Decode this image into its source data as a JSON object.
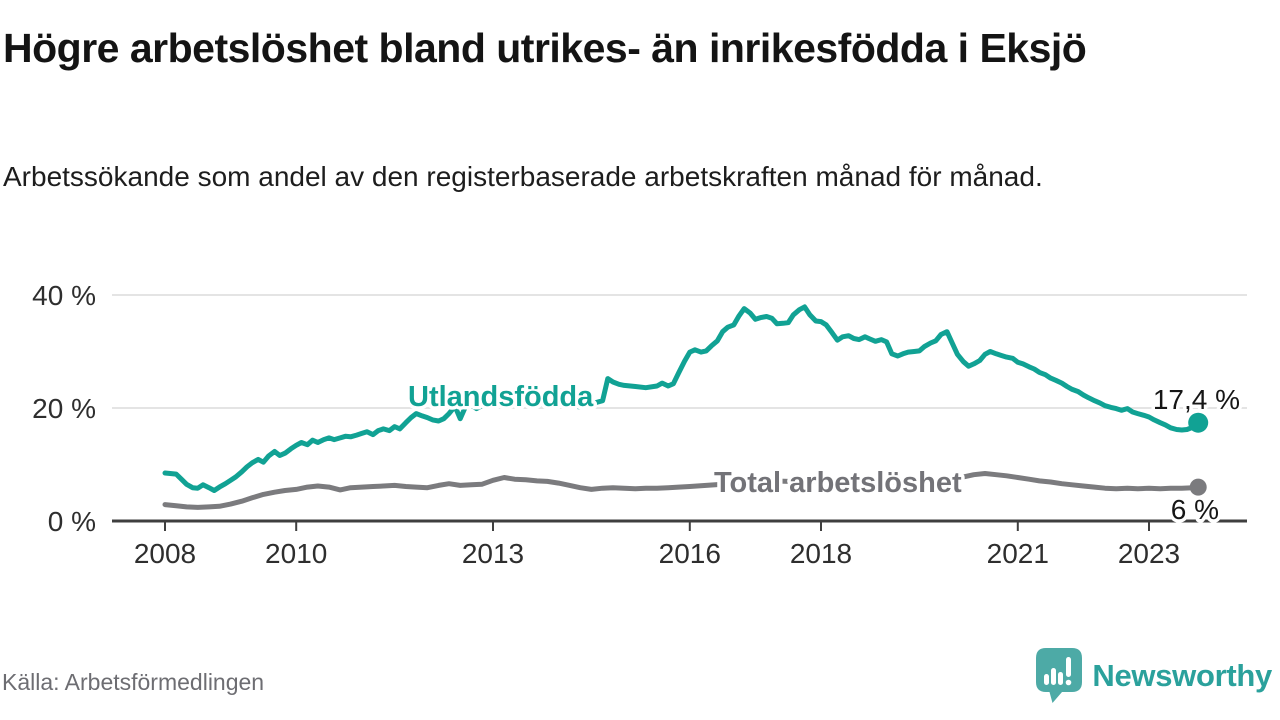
{
  "header": {
    "title": "Högre arbetslöshet bland utrikes- än inrikesfödda i Eksjö",
    "subtitle": "Arbetssökande som andel av den registerbaserade arbetskraften månad för månad."
  },
  "chart_data": {
    "type": "line",
    "title": "Högre arbetslöshet bland utrikes- än inrikesfödda i Eksjö",
    "subtitle": "Arbetssökande som andel av den registerbaserade arbetskraften månad för månad.",
    "xlabel": "",
    "ylabel": "",
    "x_unit": "year (monthly data)",
    "y_unit": "%",
    "x_ticks": [
      2008,
      2010,
      2013,
      2016,
      2018,
      2021,
      2023
    ],
    "y_ticks": [
      {
        "value": 0,
        "label": "0 %"
      },
      {
        "value": 20,
        "label": "20 %"
      },
      {
        "value": 40,
        "label": "40 %"
      }
    ],
    "ylim": [
      0,
      40
    ],
    "grid": "horizontal",
    "legend": "inline-labels",
    "series": [
      {
        "name": "Utlandsfödda",
        "color": "#11A294",
        "end_value": 17.4,
        "end_label": "17,4 %",
        "points": [
          [
            2008.0,
            8.5
          ],
          [
            2008.08,
            8.4
          ],
          [
            2008.17,
            8.3
          ],
          [
            2008.25,
            7.4
          ],
          [
            2008.33,
            6.5
          ],
          [
            2008.42,
            5.9
          ],
          [
            2008.5,
            5.8
          ],
          [
            2008.58,
            6.4
          ],
          [
            2008.67,
            5.9
          ],
          [
            2008.75,
            5.4
          ],
          [
            2008.83,
            6.0
          ],
          [
            2008.92,
            6.6
          ],
          [
            2009.0,
            7.2
          ],
          [
            2009.08,
            7.8
          ],
          [
            2009.17,
            8.7
          ],
          [
            2009.25,
            9.6
          ],
          [
            2009.33,
            10.3
          ],
          [
            2009.42,
            10.9
          ],
          [
            2009.5,
            10.4
          ],
          [
            2009.58,
            11.5
          ],
          [
            2009.67,
            12.3
          ],
          [
            2009.75,
            11.6
          ],
          [
            2009.83,
            12.0
          ],
          [
            2009.92,
            12.8
          ],
          [
            2010.0,
            13.4
          ],
          [
            2010.08,
            13.9
          ],
          [
            2010.17,
            13.5
          ],
          [
            2010.25,
            14.3
          ],
          [
            2010.33,
            13.9
          ],
          [
            2010.42,
            14.4
          ],
          [
            2010.5,
            14.7
          ],
          [
            2010.58,
            14.4
          ],
          [
            2010.67,
            14.7
          ],
          [
            2010.75,
            15.0
          ],
          [
            2010.83,
            14.9
          ],
          [
            2010.92,
            15.2
          ],
          [
            2011.0,
            15.5
          ],
          [
            2011.08,
            15.8
          ],
          [
            2011.17,
            15.3
          ],
          [
            2011.25,
            16.0
          ],
          [
            2011.33,
            16.3
          ],
          [
            2011.42,
            16.0
          ],
          [
            2011.5,
            16.7
          ],
          [
            2011.58,
            16.3
          ],
          [
            2011.67,
            17.4
          ],
          [
            2011.75,
            18.3
          ],
          [
            2011.83,
            19.0
          ],
          [
            2011.92,
            18.6
          ],
          [
            2012.0,
            18.3
          ],
          [
            2012.08,
            17.9
          ],
          [
            2012.17,
            17.7
          ],
          [
            2012.25,
            18.1
          ],
          [
            2012.33,
            19.0
          ],
          [
            2012.42,
            20.3
          ],
          [
            2012.5,
            18.1
          ],
          [
            2012.58,
            20.2
          ],
          [
            2012.67,
            20.5
          ],
          [
            2012.75,
            19.9
          ],
          [
            2012.83,
            20.4
          ],
          [
            2012.92,
            20.6
          ],
          [
            2013.0,
            20.7
          ],
          [
            2013.17,
            20.9
          ],
          [
            2013.33,
            20.5
          ],
          [
            2013.5,
            20.8
          ],
          [
            2013.67,
            20.6
          ],
          [
            2013.83,
            20.9
          ],
          [
            2014.0,
            20.7
          ],
          [
            2014.17,
            20.4
          ],
          [
            2014.33,
            20.2
          ],
          [
            2014.5,
            20.7
          ],
          [
            2014.58,
            21.0
          ],
          [
            2014.67,
            21.3
          ],
          [
            2014.75,
            25.2
          ],
          [
            2014.83,
            24.6
          ],
          [
            2014.92,
            24.2
          ],
          [
            2015.0,
            24.0
          ],
          [
            2015.17,
            23.8
          ],
          [
            2015.33,
            23.6
          ],
          [
            2015.5,
            23.9
          ],
          [
            2015.58,
            24.4
          ],
          [
            2015.67,
            23.9
          ],
          [
            2015.75,
            24.3
          ],
          [
            2015.83,
            26.2
          ],
          [
            2015.92,
            28.3
          ],
          [
            2016.0,
            29.9
          ],
          [
            2016.08,
            30.3
          ],
          [
            2016.17,
            29.9
          ],
          [
            2016.25,
            30.1
          ],
          [
            2016.33,
            31.0
          ],
          [
            2016.42,
            31.9
          ],
          [
            2016.5,
            33.5
          ],
          [
            2016.58,
            34.3
          ],
          [
            2016.67,
            34.7
          ],
          [
            2016.75,
            36.3
          ],
          [
            2016.83,
            37.6
          ],
          [
            2016.92,
            36.8
          ],
          [
            2017.0,
            35.7
          ],
          [
            2017.08,
            36.0
          ],
          [
            2017.17,
            36.2
          ],
          [
            2017.25,
            35.9
          ],
          [
            2017.33,
            34.9
          ],
          [
            2017.42,
            35.0
          ],
          [
            2017.5,
            35.1
          ],
          [
            2017.58,
            36.5
          ],
          [
            2017.67,
            37.4
          ],
          [
            2017.75,
            37.9
          ],
          [
            2017.83,
            36.5
          ],
          [
            2017.92,
            35.4
          ],
          [
            2018.0,
            35.3
          ],
          [
            2018.08,
            34.7
          ],
          [
            2018.17,
            33.3
          ],
          [
            2018.25,
            32.0
          ],
          [
            2018.33,
            32.6
          ],
          [
            2018.42,
            32.8
          ],
          [
            2018.5,
            32.3
          ],
          [
            2018.58,
            32.1
          ],
          [
            2018.67,
            32.6
          ],
          [
            2018.75,
            32.2
          ],
          [
            2018.83,
            31.8
          ],
          [
            2018.92,
            32.1
          ],
          [
            2019.0,
            31.7
          ],
          [
            2019.08,
            29.6
          ],
          [
            2019.17,
            29.2
          ],
          [
            2019.25,
            29.6
          ],
          [
            2019.33,
            29.9
          ],
          [
            2019.42,
            30.0
          ],
          [
            2019.5,
            30.1
          ],
          [
            2019.58,
            30.9
          ],
          [
            2019.67,
            31.5
          ],
          [
            2019.75,
            31.9
          ],
          [
            2019.83,
            33.0
          ],
          [
            2019.92,
            33.5
          ],
          [
            2020.0,
            31.5
          ],
          [
            2020.08,
            29.5
          ],
          [
            2020.17,
            28.2
          ],
          [
            2020.25,
            27.4
          ],
          [
            2020.33,
            27.8
          ],
          [
            2020.42,
            28.4
          ],
          [
            2020.5,
            29.5
          ],
          [
            2020.58,
            30.0
          ],
          [
            2020.67,
            29.6
          ],
          [
            2020.75,
            29.3
          ],
          [
            2020.83,
            29.0
          ],
          [
            2020.92,
            28.8
          ],
          [
            2021.0,
            28.1
          ],
          [
            2021.08,
            27.8
          ],
          [
            2021.17,
            27.3
          ],
          [
            2021.25,
            26.9
          ],
          [
            2021.33,
            26.3
          ],
          [
            2021.42,
            25.9
          ],
          [
            2021.5,
            25.3
          ],
          [
            2021.58,
            24.9
          ],
          [
            2021.67,
            24.4
          ],
          [
            2021.75,
            23.8
          ],
          [
            2021.83,
            23.3
          ],
          [
            2021.92,
            22.9
          ],
          [
            2022.0,
            22.3
          ],
          [
            2022.08,
            21.8
          ],
          [
            2022.17,
            21.3
          ],
          [
            2022.25,
            20.9
          ],
          [
            2022.33,
            20.4
          ],
          [
            2022.42,
            20.1
          ],
          [
            2022.5,
            19.9
          ],
          [
            2022.58,
            19.6
          ],
          [
            2022.67,
            19.9
          ],
          [
            2022.75,
            19.3
          ],
          [
            2022.83,
            19.0
          ],
          [
            2022.92,
            18.7
          ],
          [
            2023.0,
            18.4
          ],
          [
            2023.08,
            17.9
          ],
          [
            2023.17,
            17.4
          ],
          [
            2023.25,
            17.0
          ],
          [
            2023.33,
            16.5
          ],
          [
            2023.42,
            16.2
          ],
          [
            2023.5,
            16.1
          ],
          [
            2023.58,
            16.2
          ],
          [
            2023.67,
            16.6
          ],
          [
            2023.75,
            17.4
          ]
        ]
      },
      {
        "name": "Total arbetslöshet",
        "color": "#7B7B7E",
        "end_value": 6,
        "end_label": "6 %",
        "points": [
          [
            2008.0,
            2.9
          ],
          [
            2008.17,
            2.7
          ],
          [
            2008.33,
            2.5
          ],
          [
            2008.5,
            2.4
          ],
          [
            2008.67,
            2.5
          ],
          [
            2008.83,
            2.6
          ],
          [
            2009.0,
            3.0
          ],
          [
            2009.17,
            3.5
          ],
          [
            2009.33,
            4.1
          ],
          [
            2009.5,
            4.7
          ],
          [
            2009.67,
            5.1
          ],
          [
            2009.83,
            5.4
          ],
          [
            2010.0,
            5.6
          ],
          [
            2010.17,
            6.0
          ],
          [
            2010.33,
            6.2
          ],
          [
            2010.5,
            6.0
          ],
          [
            2010.67,
            5.5
          ],
          [
            2010.83,
            5.9
          ],
          [
            2011.0,
            6.0
          ],
          [
            2011.17,
            6.1
          ],
          [
            2011.33,
            6.2
          ],
          [
            2011.5,
            6.3
          ],
          [
            2011.67,
            6.1
          ],
          [
            2011.83,
            6.0
          ],
          [
            2012.0,
            5.9
          ],
          [
            2012.17,
            6.3
          ],
          [
            2012.33,
            6.6
          ],
          [
            2012.5,
            6.3
          ],
          [
            2012.67,
            6.4
          ],
          [
            2012.83,
            6.5
          ],
          [
            2013.0,
            7.2
          ],
          [
            2013.17,
            7.7
          ],
          [
            2013.33,
            7.4
          ],
          [
            2013.5,
            7.3
          ],
          [
            2013.67,
            7.1
          ],
          [
            2013.83,
            7.0
          ],
          [
            2014.0,
            6.7
          ],
          [
            2014.17,
            6.3
          ],
          [
            2014.33,
            5.9
          ],
          [
            2014.5,
            5.6
          ],
          [
            2014.67,
            5.8
          ],
          [
            2014.83,
            5.9
          ],
          [
            2015.0,
            5.8
          ],
          [
            2015.17,
            5.7
          ],
          [
            2015.33,
            5.8
          ],
          [
            2015.5,
            5.8
          ],
          [
            2015.67,
            5.9
          ],
          [
            2015.83,
            6.0
          ],
          [
            2016.0,
            6.1
          ],
          [
            2016.25,
            6.3
          ],
          [
            2016.5,
            6.5
          ],
          [
            2016.75,
            6.7
          ],
          [
            2017.0,
            7.0
          ],
          [
            2017.25,
            7.1
          ],
          [
            2017.5,
            7.0
          ],
          [
            2017.75,
            7.1
          ],
          [
            2018.0,
            7.0
          ],
          [
            2018.25,
            6.8
          ],
          [
            2018.5,
            6.7
          ],
          [
            2018.75,
            6.9
          ],
          [
            2019.0,
            6.8
          ],
          [
            2019.25,
            6.6
          ],
          [
            2019.5,
            6.7
          ],
          [
            2019.75,
            7.0
          ],
          [
            2020.0,
            7.4
          ],
          [
            2020.17,
            7.8
          ],
          [
            2020.33,
            8.2
          ],
          [
            2020.5,
            8.4
          ],
          [
            2020.67,
            8.2
          ],
          [
            2020.83,
            8.0
          ],
          [
            2021.0,
            7.7
          ],
          [
            2021.17,
            7.4
          ],
          [
            2021.33,
            7.1
          ],
          [
            2021.5,
            6.9
          ],
          [
            2021.67,
            6.6
          ],
          [
            2021.83,
            6.4
          ],
          [
            2022.0,
            6.2
          ],
          [
            2022.17,
            6.0
          ],
          [
            2022.33,
            5.8
          ],
          [
            2022.5,
            5.7
          ],
          [
            2022.67,
            5.8
          ],
          [
            2022.83,
            5.7
          ],
          [
            2023.0,
            5.8
          ],
          [
            2023.17,
            5.7
          ],
          [
            2023.33,
            5.8
          ],
          [
            2023.5,
            5.8
          ],
          [
            2023.67,
            5.9
          ],
          [
            2023.75,
            6.0
          ]
        ]
      }
    ]
  },
  "footer": {
    "source": "Källa: Arbetsförmedlingen",
    "brand": "Newsworthy"
  },
  "icons": {
    "logo": "newsworthy-speech-bubble-bar-chart-icon"
  },
  "colors": {
    "accent_teal": "#11A294",
    "line_gray": "#7B7B7E",
    "brand_teal": "#2BA19C",
    "icon_teal": "#4DAAA6",
    "gridline": "#DCDCDC",
    "axis": "#3F3F3F"
  }
}
